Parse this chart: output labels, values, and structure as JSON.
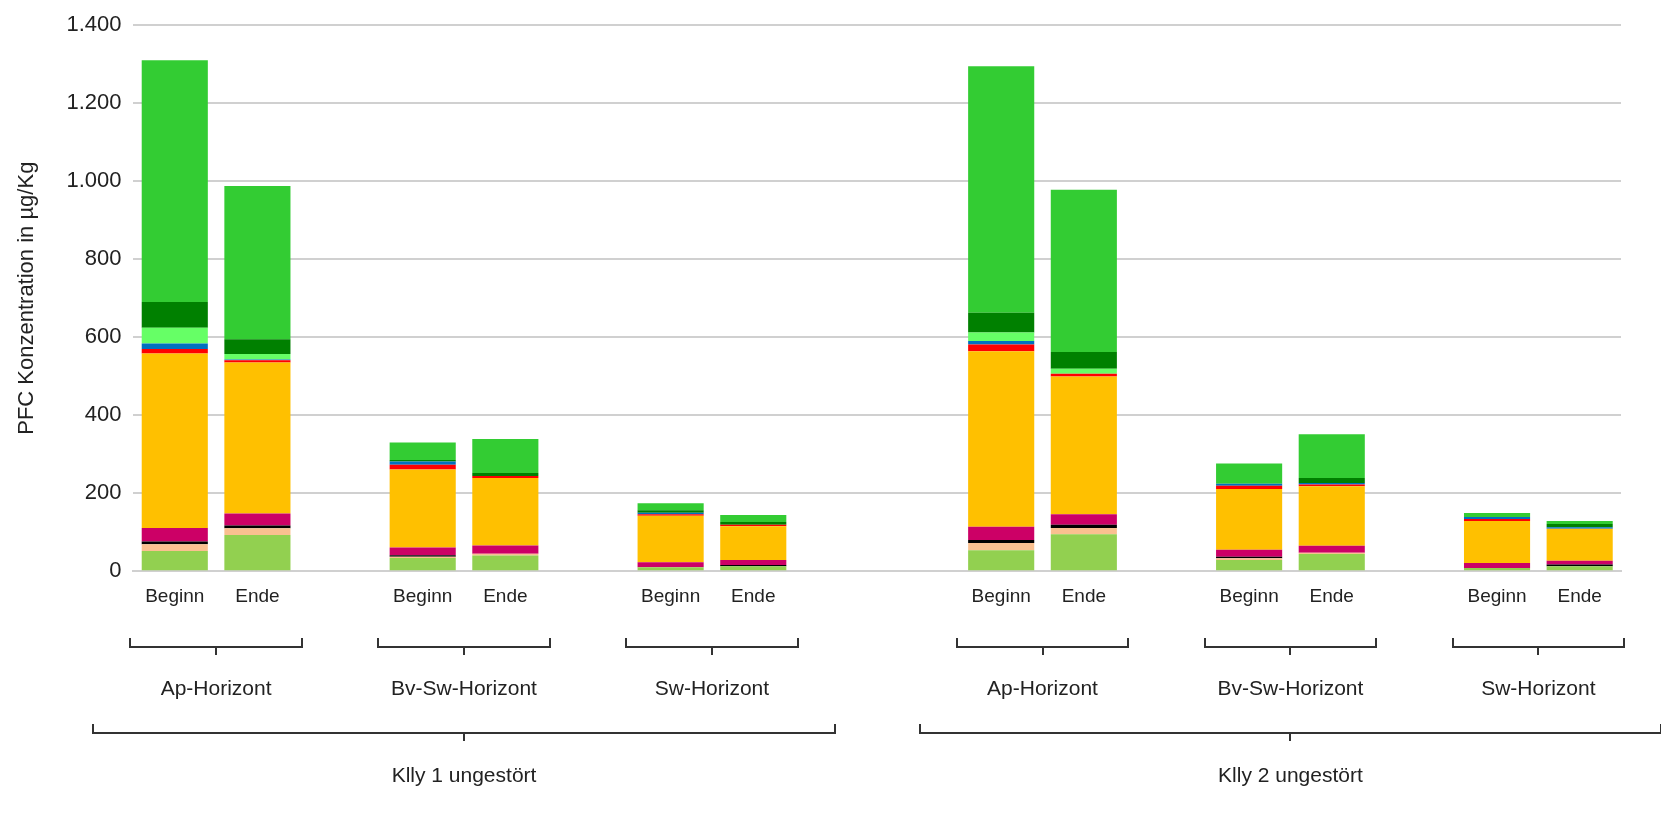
{
  "chart_data": {
    "type": "bar",
    "stacked": true,
    "ylabel": "PFC Konzentration in µg/Kg",
    "categories": [
      "Beginn",
      "Ende",
      null,
      "Beginn",
      "Ende",
      null,
      "Beginn",
      "Ende",
      null,
      null,
      "Beginn",
      "Ende",
      null,
      "Beginn",
      "Ende",
      null,
      "Beginn",
      "Ende"
    ],
    "ylim": [
      0,
      1400
    ],
    "yticks": [
      0,
      200,
      400,
      600,
      800,
      {
        "value": 1000,
        "label": "1.000"
      },
      {
        "value": 1200,
        "label": "1.200"
      },
      {
        "value": 1400,
        "label": "1.400"
      }
    ],
    "grid": "y",
    "legend": false,
    "annotations": [
      "Ap-Horizont",
      "Bv-Sw-Horizont",
      "Sw-Horizont",
      "Ap-Horizont",
      "Bv-Sw-Horizont",
      "Sw-Horizont",
      "Klly 1 ungestört",
      "Klly 2 ungestört"
    ],
    "series": [
      {
        "color": "#92d050",
        "values": [
          52,
          93,
          null,
          34,
          40,
          null,
          10,
          13,
          null,
          null,
          54,
          95,
          null,
          29,
          44,
          null,
          8,
          13
        ]
      },
      {
        "color": "#fac090",
        "values": [
          17,
          17,
          null,
          3,
          5,
          null,
          null,
          null,
          null,
          null,
          18,
          16,
          null,
          4,
          3,
          null,
          null,
          null
        ]
      },
      {
        "color": "#000000",
        "values": [
          7,
          7,
          null,
          4,
          null,
          null,
          null,
          3,
          null,
          null,
          8,
          8,
          null,
          4,
          null,
          null,
          null,
          4
        ]
      },
      {
        "color": "#cc0066",
        "values": [
          35,
          31,
          null,
          20,
          21,
          null,
          13,
          13,
          null,
          null,
          34,
          27,
          null,
          18,
          18,
          null,
          13,
          10
        ]
      },
      {
        "color": "#ffc000",
        "values": [
          447,
          387,
          null,
          200,
          173,
          null,
          119,
          86,
          null,
          null,
          450,
          353,
          null,
          156,
          153,
          null,
          108,
          82
        ]
      },
      {
        "color": "#ff0000",
        "values": [
          12,
          6,
          null,
          12,
          5,
          null,
          4,
          4,
          null,
          null,
          17,
          7,
          null,
          8,
          4,
          null,
          5,
          null
        ]
      },
      {
        "color": "#0070c0",
        "values": [
          14,
          2,
          null,
          8,
          null,
          null,
          4,
          null,
          null,
          null,
          9,
          null,
          null,
          5,
          4,
          null,
          5,
          4
        ]
      },
      {
        "color": "#66ff66",
        "values": [
          40,
          14,
          null,
          null,
          null,
          null,
          null,
          null,
          null,
          null,
          22,
          13,
          null,
          null,
          null,
          null,
          null,
          null
        ]
      },
      {
        "color": "#008000",
        "values": [
          66,
          38,
          null,
          4,
          8,
          null,
          6,
          7,
          null,
          null,
          51,
          43,
          null,
          null,
          13,
          null,
          null,
          8
        ]
      },
      {
        "color": "#33cc33",
        "values": [
          620,
          393,
          null,
          45,
          87,
          null,
          18,
          18,
          null,
          null,
          632,
          416,
          null,
          52,
          112,
          null,
          10,
          8
        ]
      }
    ]
  }
}
